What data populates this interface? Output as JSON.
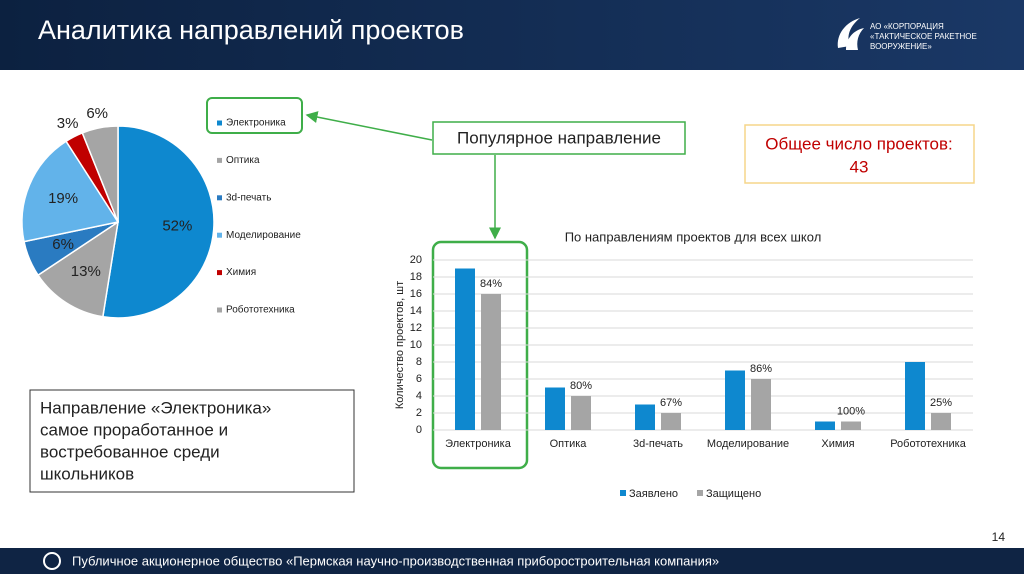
{
  "header": {
    "title": "Аналитика направлений проектов",
    "logo_lines": [
      "АО «КОРПОРАЦИЯ",
      "«ТАКТИЧЕСКОЕ РАКЕТНОЕ",
      "ВООРУЖЕНИЕ»"
    ]
  },
  "callout": "Популярное направление",
  "total_box": {
    "label": "Общее число проектов:",
    "value": 43
  },
  "note_lines": [
    "Направление «Электроника»",
    "самое проработанное и",
    "востребованное среди",
    "школьников"
  ],
  "chart_data": [
    {
      "type": "pie",
      "categories": [
        "Электроника",
        "Оптика",
        "3d-печать",
        "Моделирование",
        "Химия",
        "Робототехника"
      ],
      "values": [
        52,
        13,
        6,
        19,
        3,
        6
      ],
      "value_labels": [
        "52%",
        "13%",
        "6%",
        "19%",
        "3%",
        "6%"
      ],
      "colors": [
        "#0e88cf",
        "#a5a5a5",
        "#2a7bc1",
        "#62b3ea",
        "#c00000",
        "#a5a5a5"
      ],
      "legend": "right"
    },
    {
      "type": "bar",
      "title": "По направлениям проектов для всех школ",
      "y_label": "Количество проектов, шт",
      "categories": [
        "Электроника",
        "Оптика",
        "3d-печать",
        "Моделирование",
        "Химия",
        "Робототехника"
      ],
      "series": [
        {
          "name": "Заявлено",
          "color": "#0e88cf",
          "values": [
            19,
            5,
            3,
            7,
            1,
            8
          ]
        },
        {
          "name": "Защищено",
          "color": "#a5a5a5",
          "values": [
            16,
            4,
            2,
            6,
            1,
            2
          ],
          "share_labels": [
            "84%",
            "80%",
            "67%",
            "86%",
            "100%",
            "25%"
          ]
        }
      ],
      "ylim": [
        0,
        20
      ],
      "yticks": [
        0,
        2,
        4,
        6,
        8,
        10,
        12,
        14,
        16,
        18,
        20
      ],
      "grid": true,
      "legend": "bottom"
    }
  ],
  "footer": {
    "text": "Публичное акционерное общество «Пермская научно-производственная приборостроительная компания»",
    "page": 14
  }
}
